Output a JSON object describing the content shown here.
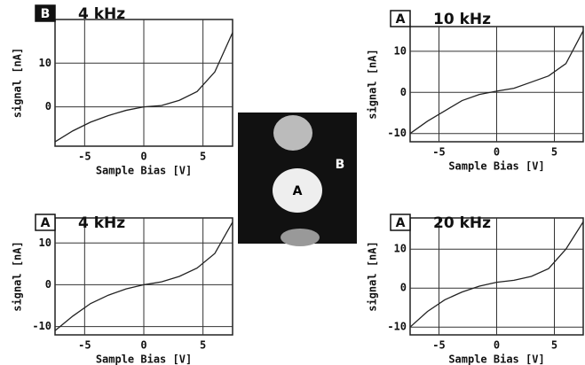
{
  "chart_data": [
    {
      "type": "line",
      "panel_label": "B",
      "title": "4 kHz",
      "xlabel": "Sample Bias [V]",
      "ylabel": "signal [nA]",
      "x": [
        -7.5,
        -6,
        -4.5,
        -3,
        -1.5,
        0,
        1.5,
        3,
        4.5,
        6,
        7.5
      ],
      "series": [
        {
          "color": "#222222",
          "values": [
            -8,
            -5.5,
            -3.5,
            -2,
            -0.8,
            0,
            0.3,
            1.5,
            3.5,
            8,
            17
          ]
        }
      ],
      "xlim": [
        -7.5,
        7.5
      ],
      "xticks": [
        -5,
        0,
        5
      ],
      "ylim": [
        -9,
        20
      ],
      "yticks": [
        0,
        10
      ],
      "grid": true
    },
    {
      "type": "line",
      "panel_label": "A",
      "title": "10 kHz",
      "xlabel": "Sample Bias [V]",
      "ylabel": "signal [nA]",
      "x": [
        -7.5,
        -6,
        -4.5,
        -3,
        -1.5,
        0,
        1.5,
        3,
        4.5,
        6,
        7.5
      ],
      "series": [
        {
          "color": "#222222",
          "values": [
            -10,
            -7,
            -4.5,
            -2,
            -0.5,
            0.3,
            1,
            2.5,
            4,
            7,
            15
          ]
        }
      ],
      "xlim": [
        -7.5,
        7.5
      ],
      "xticks": [
        -5,
        0,
        5
      ],
      "ylim": [
        -12,
        16
      ],
      "yticks": [
        -10,
        0,
        10
      ],
      "grid": true
    },
    {
      "type": "line",
      "panel_label": "A",
      "title": "4 kHz",
      "xlabel": "Sample Bias [V]",
      "ylabel": "signal [nA]",
      "x": [
        -7.5,
        -6,
        -4.5,
        -3,
        -1.5,
        0,
        1.5,
        3,
        4.5,
        6,
        7.5
      ],
      "series": [
        {
          "color": "#222222",
          "values": [
            -11,
            -7.5,
            -4.5,
            -2.5,
            -1,
            0,
            0.7,
            2,
            4,
            7.5,
            15
          ]
        }
      ],
      "xlim": [
        -7.5,
        7.5
      ],
      "xticks": [
        -5,
        0,
        5
      ],
      "ylim": [
        -12,
        16
      ],
      "yticks": [
        -10,
        0,
        10
      ],
      "grid": true
    },
    {
      "type": "line",
      "panel_label": "A",
      "title": "20 kHz",
      "xlabel": "Sample Bias [V]",
      "ylabel": "signal [nA]",
      "x": [
        -7.5,
        -6,
        -4.5,
        -3,
        -1.5,
        0,
        1.5,
        3,
        4.5,
        6,
        7.5
      ],
      "series": [
        {
          "color": "#222222",
          "values": [
            -10,
            -6,
            -3,
            -1,
            0.5,
            1.5,
            2,
            3,
            5,
            10,
            17
          ]
        }
      ],
      "xlim": [
        -7.5,
        7.5
      ],
      "xticks": [
        -5,
        0,
        5
      ],
      "ylim": [
        -12,
        18
      ],
      "yticks": [
        -10,
        0,
        10
      ],
      "grid": true
    }
  ],
  "image": {
    "labels": [
      "A",
      "B"
    ]
  }
}
